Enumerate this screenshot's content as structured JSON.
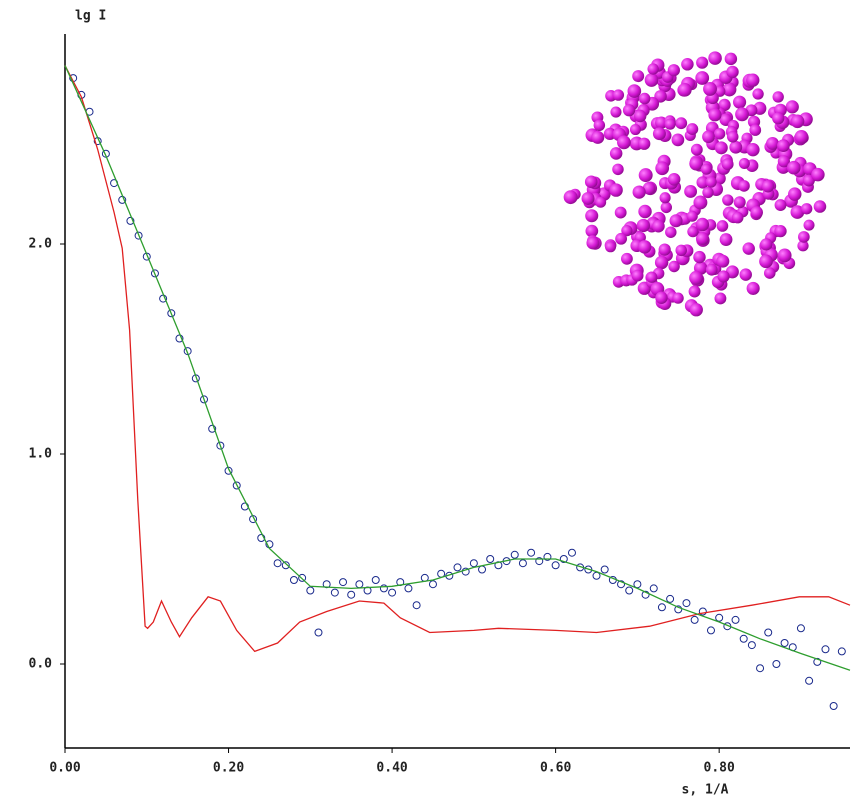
{
  "chart_data": {
    "type": "line",
    "title": "lg I",
    "x_label": "s, 1/A",
    "xlim": [
      0,
      0.96
    ],
    "ylim": [
      -0.4,
      3.0
    ],
    "xticks": [
      {
        "value": 0,
        "label": "0.00"
      },
      {
        "value": 0.2,
        "label": "0.20"
      },
      {
        "value": 0.4,
        "label": "0.40"
      },
      {
        "value": 0.6,
        "label": "0.60"
      },
      {
        "value": 0.8,
        "label": "0.80"
      }
    ],
    "yticks": [
      {
        "value": 0,
        "label": "0.0"
      },
      {
        "value": 1,
        "label": "1.0"
      },
      {
        "value": 2,
        "label": "2.0"
      }
    ],
    "grid": false,
    "series": [
      {
        "mode": "markers",
        "color": "#1a2a8c",
        "x": [
          0.01,
          0.02,
          0.03,
          0.04,
          0.05,
          0.06,
          0.07,
          0.08,
          0.09,
          0.1,
          0.11,
          0.12,
          0.13,
          0.14,
          0.15,
          0.16,
          0.17,
          0.18,
          0.19,
          0.2,
          0.21,
          0.22,
          0.23,
          0.24,
          0.25,
          0.26,
          0.27,
          0.28,
          0.29,
          0.3,
          0.31,
          0.32,
          0.33,
          0.34,
          0.35,
          0.36,
          0.37,
          0.38,
          0.39,
          0.4,
          0.41,
          0.42,
          0.43,
          0.44,
          0.45,
          0.46,
          0.47,
          0.48,
          0.49,
          0.5,
          0.51,
          0.52,
          0.53,
          0.54,
          0.55,
          0.56,
          0.57,
          0.58,
          0.59,
          0.6,
          0.61,
          0.62,
          0.63,
          0.64,
          0.65,
          0.66,
          0.67,
          0.68,
          0.69,
          0.7,
          0.71,
          0.72,
          0.73,
          0.74,
          0.75,
          0.76,
          0.77,
          0.78,
          0.79,
          0.8,
          0.81,
          0.82,
          0.83,
          0.84,
          0.85,
          0.86,
          0.87,
          0.88,
          0.89,
          0.9,
          0.91,
          0.92,
          0.93,
          0.94,
          0.95
        ],
        "values": [
          2.79,
          2.71,
          2.63,
          2.49,
          2.43,
          2.29,
          2.21,
          2.11,
          2.04,
          1.94,
          1.86,
          1.74,
          1.67,
          1.55,
          1.49,
          1.36,
          1.26,
          1.12,
          1.04,
          0.92,
          0.85,
          0.75,
          0.69,
          0.6,
          0.57,
          0.48,
          0.47,
          0.4,
          0.41,
          0.35,
          0.15,
          0.38,
          0.34,
          0.39,
          0.33,
          0.38,
          0.35,
          0.4,
          0.36,
          0.34,
          0.39,
          0.36,
          0.28,
          0.41,
          0.38,
          0.43,
          0.42,
          0.46,
          0.44,
          0.48,
          0.45,
          0.5,
          0.47,
          0.49,
          0.52,
          0.48,
          0.53,
          0.49,
          0.51,
          0.47,
          0.5,
          0.53,
          0.46,
          0.45,
          0.42,
          0.45,
          0.4,
          0.38,
          0.35,
          0.38,
          0.33,
          0.36,
          0.27,
          0.31,
          0.26,
          0.29,
          0.21,
          0.25,
          0.16,
          0.22,
          0.18,
          0.21,
          0.12,
          0.09,
          -0.02,
          0.15,
          0.0,
          0.1,
          0.08,
          0.17,
          -0.08,
          0.01,
          0.07,
          -0.2,
          0.06
        ]
      },
      {
        "mode": "line",
        "color": "#e02020",
        "x": [
          0,
          0.02,
          0.04,
          0.06,
          0.07,
          0.079,
          0.089,
          0.098,
          0.101,
          0.108,
          0.118,
          0.13,
          0.14,
          0.155,
          0.175,
          0.19,
          0.21,
          0.232,
          0.26,
          0.287,
          0.32,
          0.36,
          0.39,
          0.41,
          0.446,
          0.5,
          0.53,
          0.6,
          0.65,
          0.715,
          0.776,
          0.84,
          0.898,
          0.934,
          0.96
        ],
        "values": [
          2.85,
          2.7,
          2.45,
          2.15,
          1.98,
          1.59,
          0.78,
          0.18,
          0.17,
          0.2,
          0.3,
          0.2,
          0.13,
          0.22,
          0.32,
          0.3,
          0.16,
          0.06,
          0.1,
          0.2,
          0.25,
          0.3,
          0.29,
          0.22,
          0.15,
          0.16,
          0.17,
          0.16,
          0.15,
          0.18,
          0.24,
          0.28,
          0.32,
          0.32,
          0.28
        ]
      },
      {
        "mode": "line",
        "color": "#2e9e2e",
        "x": [
          0,
          0.05,
          0.1,
          0.15,
          0.2,
          0.25,
          0.3,
          0.35,
          0.4,
          0.45,
          0.5,
          0.55,
          0.6,
          0.65,
          0.7,
          0.75,
          0.8,
          0.85,
          0.9,
          0.96
        ],
        "values": [
          2.85,
          2.42,
          1.95,
          1.48,
          0.93,
          0.55,
          0.37,
          0.36,
          0.37,
          0.4,
          0.46,
          0.5,
          0.5,
          0.44,
          0.36,
          0.27,
          0.2,
          0.12,
          0.05,
          -0.03
        ]
      }
    ]
  }
}
